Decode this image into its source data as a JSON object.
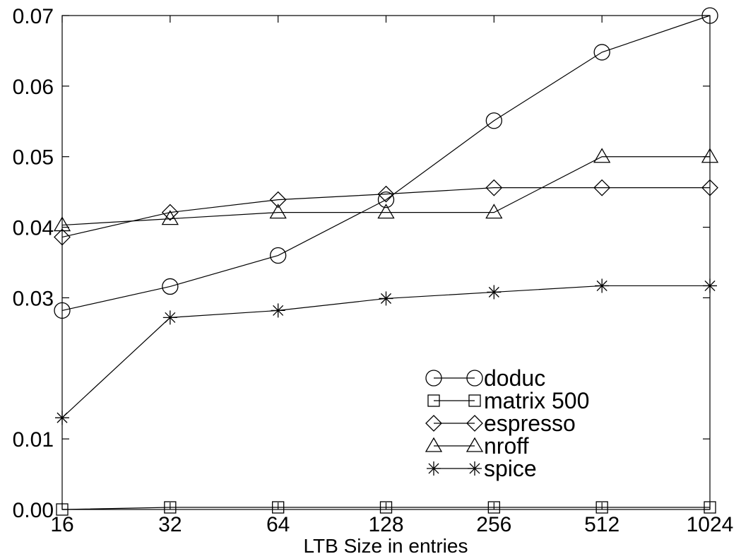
{
  "chart_data": {
    "type": "line",
    "title": "",
    "xlabel": "LTB Size in entries",
    "ylabel": "",
    "categories": [
      "16",
      "32",
      "64",
      "128",
      "256",
      "512",
      "1024"
    ],
    "y_ticks": [
      "0.00",
      "0.01",
      "0.03",
      "0.04",
      "0.05",
      "0.06",
      "0.07"
    ],
    "y_tick_values": [
      0.0,
      0.01,
      0.03,
      0.04,
      0.05,
      0.06,
      0.07
    ],
    "ylim": [
      0.0,
      0.07
    ],
    "grid": false,
    "legend_position": "bottom-right",
    "series": [
      {
        "name": "doduc",
        "marker": "circle",
        "values": [
          0.0282,
          0.0316,
          0.036,
          0.0439,
          0.0551,
          0.0648,
          0.07
        ]
      },
      {
        "name": "matrix 500",
        "marker": "square",
        "values": [
          0.0,
          0.0003,
          0.0003,
          0.0003,
          0.0003,
          0.0003,
          0.0003
        ]
      },
      {
        "name": "espresso",
        "marker": "diamond",
        "values": [
          0.0386,
          0.0421,
          0.0439,
          0.0447,
          0.0456,
          0.0456,
          0.0456
        ]
      },
      {
        "name": "nroff",
        "marker": "triangle",
        "values": [
          0.0403,
          0.0412,
          0.0421,
          0.0421,
          0.0421,
          0.05,
          0.05
        ]
      },
      {
        "name": "spice",
        "marker": "star",
        "values": [
          0.013,
          0.0272,
          0.0282,
          0.0299,
          0.0308,
          0.0317,
          0.0317
        ]
      }
    ]
  }
}
